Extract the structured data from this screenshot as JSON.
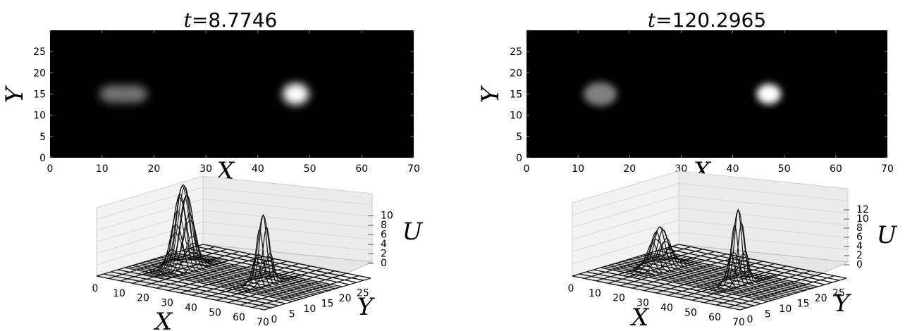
{
  "chart_data": [
    {
      "type": "heatmap",
      "title_var": "t",
      "title_eq": "=",
      "title_value": "8.7746",
      "xlabel": "X",
      "ylabel": "Y",
      "xlim": [
        0,
        70
      ],
      "ylim": [
        0,
        30
      ],
      "xticks": [
        0,
        10,
        20,
        30,
        40,
        50,
        60,
        70
      ],
      "yticks": [
        0,
        5,
        10,
        15,
        20,
        25
      ],
      "colormap": "gray",
      "blobs": [
        {
          "x": 12.3,
          "y": 15,
          "amp": 0.45,
          "sx": 2.0,
          "sy": 1.5
        },
        {
          "x": 16.0,
          "y": 15,
          "amp": 0.45,
          "sx": 2.0,
          "sy": 1.5
        },
        {
          "x": 47.3,
          "y": 15,
          "amp": 1.0,
          "sx": 1.8,
          "sy": 1.8
        }
      ]
    },
    {
      "type": "heatmap",
      "title_var": "t",
      "title_eq": "=",
      "title_value": "120.2965",
      "xlabel": "X",
      "ylabel": "Y",
      "xlim": [
        0,
        70
      ],
      "ylim": [
        0,
        30
      ],
      "xticks": [
        0,
        10,
        20,
        30,
        40,
        50,
        60,
        70
      ],
      "yticks": [
        0,
        5,
        10,
        15,
        20,
        25
      ],
      "colormap": "gray",
      "blobs": [
        {
          "x": 14.3,
          "y": 15,
          "amp": 0.5,
          "sx": 2.3,
          "sy": 2.0
        },
        {
          "x": 47.0,
          "y": 15,
          "amp": 1.0,
          "sx": 1.7,
          "sy": 1.7
        }
      ]
    },
    {
      "type": "surface",
      "xlabel": "X",
      "ylabel": "Y",
      "zlabel": "U",
      "xticks": [
        0,
        10,
        20,
        30,
        40,
        50,
        60,
        70
      ],
      "yticks": [
        0,
        5,
        10,
        15,
        20,
        25
      ],
      "zticks": [
        0,
        2,
        4,
        6,
        8,
        10
      ],
      "zlim": [
        0,
        11
      ]
    },
    {
      "type": "surface",
      "xlabel": "X",
      "ylabel": "Y",
      "zlabel": "U",
      "xticks": [
        0,
        10,
        20,
        30,
        40,
        50,
        60,
        70
      ],
      "yticks": [
        0,
        5,
        10,
        15,
        20,
        25
      ],
      "zticks": [
        0,
        2,
        4,
        6,
        8,
        10,
        12
      ],
      "zlim": [
        0,
        13
      ]
    }
  ]
}
